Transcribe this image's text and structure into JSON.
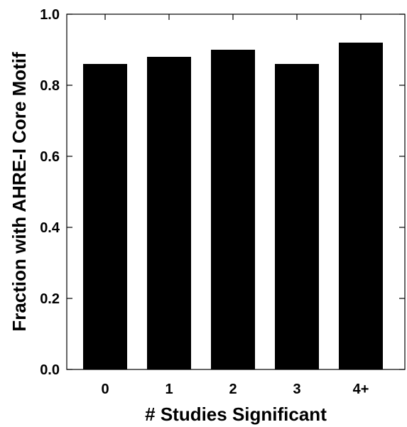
{
  "chart_data": {
    "type": "bar",
    "categories": [
      "0",
      "1",
      "2",
      "3",
      "4+"
    ],
    "values": [
      0.86,
      0.88,
      0.9,
      0.86,
      0.92
    ],
    "xlabel": "# Studies Significant",
    "ylabel": "Fraction with AHRE-I Core Motif",
    "ylim": [
      0,
      1.0
    ],
    "yticks": [
      0.0,
      0.2,
      0.4,
      0.6,
      0.8,
      1.0
    ],
    "ytick_labels": [
      "0.0",
      "0.2",
      "0.4",
      "0.6",
      "0.8",
      "1.0"
    ],
    "grid": false,
    "bar_color": "#000000"
  }
}
